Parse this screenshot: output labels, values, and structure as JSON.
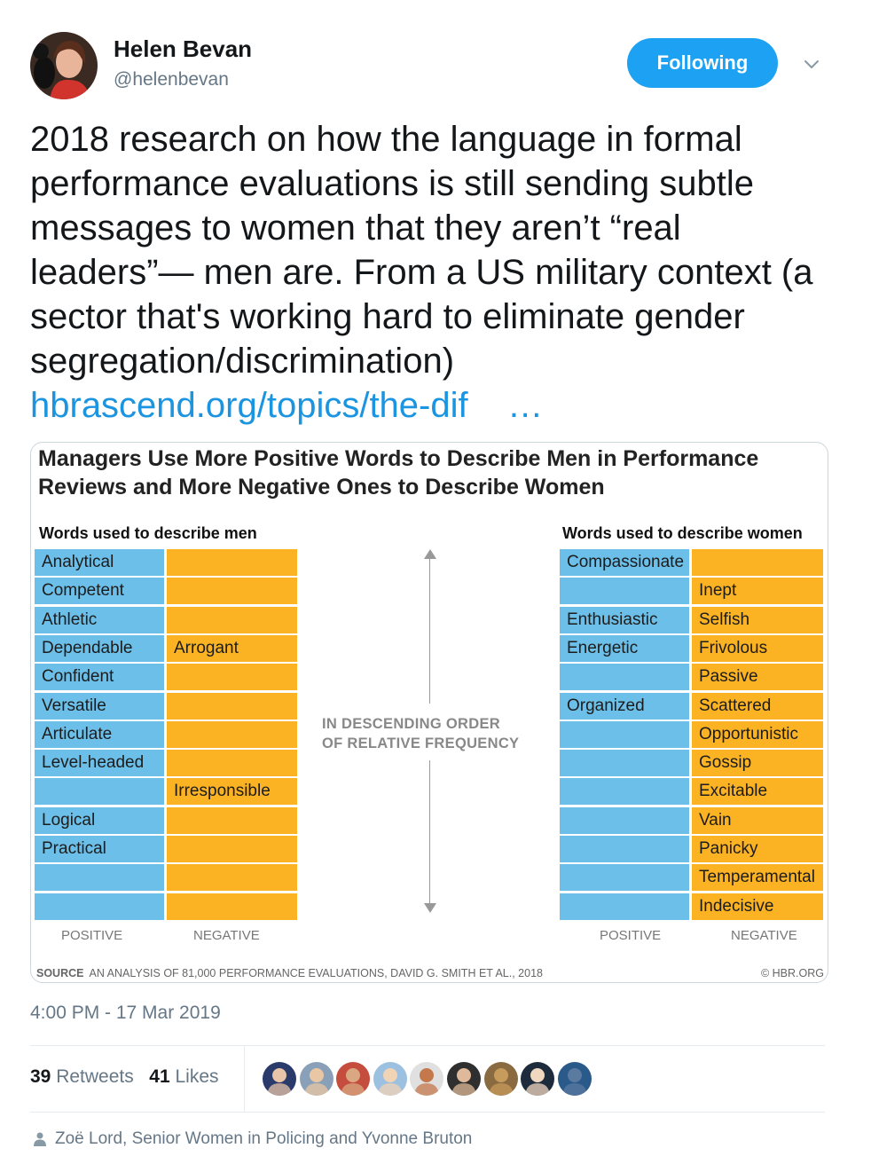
{
  "author": {
    "name": "Helen Bevan",
    "handle": "@helenbevan",
    "follow_label": "Following"
  },
  "tweet": {
    "text": "2018 research on how the language in formal performance evaluations is still sending subtle messages to women that they aren’t “real leaders”— men are. From a US military context (a sector that's working hard to eliminate gender segregation/discrimination)",
    "link": "hbrascend.org/topics/the-dif",
    "ellipsis": "…"
  },
  "card": {
    "title": "Managers Use More Positive Words to Describe Men in Performance Reviews and More Negative Ones to Describe Women",
    "men_heading": "Words used to describe men",
    "women_heading": "Words used to describe women",
    "axis_label": "IN DESCENDING ORDER\nOF RELATIVE FREQUENCY",
    "men_positive": [
      "Analytical",
      "Competent",
      "Athletic",
      "Dependable",
      "Confident",
      "Versatile",
      "Articulate",
      "Level-headed",
      "",
      "Logical",
      "Practical",
      "",
      ""
    ],
    "men_negative": [
      "",
      "",
      "",
      "Arrogant",
      "",
      "",
      "",
      "",
      "Irresponsible",
      "",
      "",
      "",
      ""
    ],
    "women_positive": [
      "Compassionate",
      "",
      "Enthusiastic",
      "Energetic",
      "",
      "Organized",
      "",
      "",
      "",
      "",
      "",
      "",
      ""
    ],
    "women_negative": [
      "",
      "Inept",
      "Selfish",
      "Frivolous",
      "Passive",
      "Scattered",
      "Opportunistic",
      "Gossip",
      "Excitable",
      "Vain",
      "Panicky",
      "Temperamental",
      "Indecisive"
    ],
    "positive_label": "POSITIVE",
    "negative_label": "NEGATIVE",
    "source_label": "SOURCE",
    "source_text": "AN ANALYSIS OF 81,000 PERFORMANCE EVALUATIONS, DAVID G. SMITH ET AL., 2018",
    "copyright": "© HBR.ORG",
    "colors": {
      "positive": "#6cbfe8",
      "negative": "#fbb324"
    }
  },
  "timestamp": "4:00 PM - 17 Mar 2019",
  "stats": {
    "retweets_count": "39",
    "retweets_label": "Retweets",
    "likes_count": "41",
    "likes_label": "Likes"
  },
  "likers_count": 9,
  "replying": "Zoë Lord, Senior Women in Policing and Yvonne Bruton"
}
